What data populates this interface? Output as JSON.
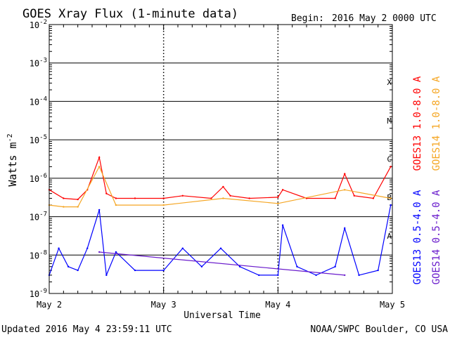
{
  "chart_data": {
    "type": "line",
    "title": "GOES Xray Flux (1-minute data)",
    "begin_label": "Begin:",
    "begin_value": "2016 May 2 0000 UTC",
    "ylabel": "Watts m",
    "ylabel_exponent": "-2",
    "xlabel": "Universal Time",
    "y_scale": "log",
    "ylim": [
      1e-09,
      0.01
    ],
    "y_ticks": [
      {
        "value": 0.01,
        "mantissa": "10",
        "exponent": "-2"
      },
      {
        "value": 0.001,
        "mantissa": "10",
        "exponent": "-3"
      },
      {
        "value": 0.0001,
        "mantissa": "10",
        "exponent": "-4"
      },
      {
        "value": 1e-05,
        "mantissa": "10",
        "exponent": "-5"
      },
      {
        "value": 1e-06,
        "mantissa": "10",
        "exponent": "-6"
      },
      {
        "value": 1e-07,
        "mantissa": "10",
        "exponent": "-7"
      },
      {
        "value": 1e-08,
        "mantissa": "10",
        "exponent": "-8"
      },
      {
        "value": 1e-09,
        "mantissa": "10",
        "exponent": "-9"
      }
    ],
    "xlim": [
      "2016-05-02 00:00",
      "2016-05-05 00:00"
    ],
    "x_ticks": [
      "May 2",
      "May 3",
      "May 4",
      "May 5"
    ],
    "flare_classes": [
      {
        "label": "X",
        "low": 0.0001,
        "high": 0.001
      },
      {
        "label": "M",
        "low": 1e-05,
        "high": 0.0001
      },
      {
        "label": "C",
        "low": 1e-06,
        "high": 1e-05
      },
      {
        "label": "B",
        "low": 1e-07,
        "high": 1e-06
      },
      {
        "label": "A",
        "low": 1e-08,
        "high": 1e-07
      }
    ],
    "grid": "horizontal lines at each decade from 1e-8 to 1e-3; dotted vertical lines at each day",
    "legend_position": "right, vertical",
    "series": [
      {
        "name": "GOES13 1.0-8.0 A",
        "color": "#ff0000",
        "x": [
          "2016-05-02 00:00",
          "2016-05-02 03:00",
          "2016-05-02 06:00",
          "2016-05-02 08:00",
          "2016-05-02 10:30",
          "2016-05-02 12:00",
          "2016-05-02 14:00",
          "2016-05-02 18:00",
          "2016-05-03 00:00",
          "2016-05-03 04:00",
          "2016-05-03 10:00",
          "2016-05-03 12:30",
          "2016-05-03 14:00",
          "2016-05-03 18:00",
          "2016-05-04 00:00",
          "2016-05-04 01:00",
          "2016-05-04 06:00",
          "2016-05-04 12:00",
          "2016-05-04 14:00",
          "2016-05-04 16:00",
          "2016-05-04 20:00",
          "2016-05-04 23:40"
        ],
        "y": [
          5e-07,
          3e-07,
          2.8e-07,
          5e-07,
          3.5e-06,
          4e-07,
          3e-07,
          3e-07,
          3e-07,
          3.5e-07,
          3e-07,
          6e-07,
          3.5e-07,
          3e-07,
          3.2e-07,
          5e-07,
          3e-07,
          3e-07,
          1.3e-06,
          3.5e-07,
          3e-07,
          2e-06
        ]
      },
      {
        "name": "GOES14 1.0-8.0 A",
        "color": "#f5a623",
        "x": [
          "2016-05-02 00:00",
          "2016-05-02 03:00",
          "2016-05-02 06:00",
          "2016-05-02 10:30",
          "2016-05-02 14:00",
          "2016-05-03 00:00",
          "2016-05-03 12:30",
          "2016-05-04 00:00",
          "2016-05-04 14:00",
          "2016-05-04 23:40"
        ],
        "y": [
          2e-07,
          1.8e-07,
          1.8e-07,
          2e-06,
          2e-07,
          2e-07,
          3e-07,
          2.2e-07,
          5e-07,
          3e-07
        ]
      },
      {
        "name": "GOES13 0.5-4.0 A",
        "color": "#0000ff",
        "x": [
          "2016-05-02 00:00",
          "2016-05-02 02:00",
          "2016-05-02 04:00",
          "2016-05-02 06:00",
          "2016-05-02 08:00",
          "2016-05-02 10:30",
          "2016-05-02 12:00",
          "2016-05-02 14:00",
          "2016-05-02 18:00",
          "2016-05-03 00:00",
          "2016-05-03 04:00",
          "2016-05-03 08:00",
          "2016-05-03 12:00",
          "2016-05-03 16:00",
          "2016-05-03 20:00",
          "2016-05-04 00:00",
          "2016-05-04 01:00",
          "2016-05-04 04:00",
          "2016-05-04 08:00",
          "2016-05-04 12:00",
          "2016-05-04 14:00",
          "2016-05-04 17:00",
          "2016-05-04 21:00",
          "2016-05-04 23:40"
        ],
        "y": [
          3e-09,
          1.5e-08,
          5e-09,
          4e-09,
          1.5e-08,
          1.5e-07,
          3e-09,
          1.2e-08,
          4e-09,
          4e-09,
          1.5e-08,
          5e-09,
          1.5e-08,
          5e-09,
          3e-09,
          3e-09,
          6e-08,
          5e-09,
          3e-09,
          5e-09,
          5e-08,
          3e-09,
          4e-09,
          2e-07
        ]
      },
      {
        "name": "GOES14 0.5-4.0 A",
        "color": "#6a1ccc",
        "x": [
          "2016-05-02 10:30",
          "2016-05-04 14:00"
        ],
        "y": [
          1.2e-08,
          3e-09
        ]
      }
    ]
  },
  "footer": {
    "updated": "Updated 2016 May  4 23:59:11 UTC",
    "credit": "NOAA/SWPC Boulder, CO USA"
  }
}
